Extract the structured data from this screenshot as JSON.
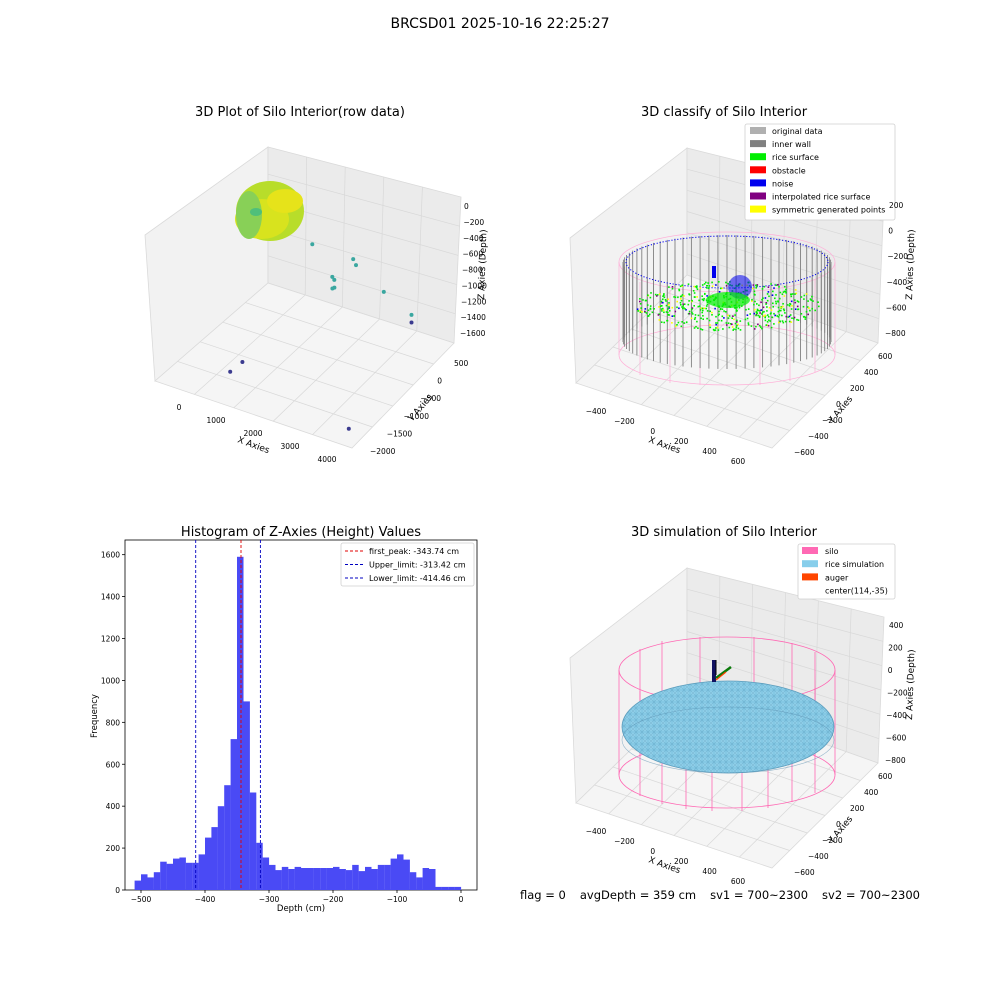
{
  "suptitle": "BRCSD01 2025-10-16 22:25:27",
  "status": {
    "flag": "flag = 0",
    "avg_depth": "avgDepth = 359 cm",
    "sv1": "sv1 = 700~2300",
    "sv2": "sv2 = 700~2300"
  },
  "colors": {
    "histogram_bar": "#4a4af5",
    "first_peak": "#e00000",
    "limit_lines": "#0000c0",
    "silo": "#ff69b4",
    "rice_simulation": "#87ceeb",
    "auger": "#ff4500",
    "inner_wall": "#808080",
    "rice_surface": "#00ee00",
    "obstacle": "#ff0000",
    "noise": "#0000ee",
    "interpolated": "#800080",
    "symmetric": "#ffff00",
    "original": "#b0b0b0",
    "raw_point_low": "#3b3b8f",
    "raw_point_mid": "#3aa7a0",
    "raw_point_high": "#d9e61d"
  },
  "panels": {
    "raw": {
      "title": "3D Plot of Silo Interior(row data)",
      "xlabel": "X Axies",
      "ylabel": "Y Axies",
      "zlabel": "Z Axies (Depth)",
      "x_ticks": [
        "0",
        "1000",
        "2000",
        "3000",
        "4000"
      ],
      "y_ticks": [
        "500",
        "0",
        "−500",
        "−1000",
        "−1500",
        "−2000"
      ],
      "z_ticks": [
        "0",
        "−200",
        "−400",
        "−600",
        "−800",
        "−1000",
        "−1200",
        "−1400",
        "−1600"
      ]
    },
    "classify": {
      "title": "3D classify of Silo Interior",
      "xlabel": "X Axies",
      "ylabel": "Y Axies",
      "zlabel": "Z Axies (Depth)",
      "x_ticks": [
        "−400",
        "−200",
        "0",
        "200",
        "400",
        "600"
      ],
      "y_ticks": [
        "600",
        "400",
        "200",
        "0",
        "−200",
        "−400",
        "−600"
      ],
      "z_ticks": [
        "200",
        "0",
        "−200",
        "−400",
        "−600",
        "−800"
      ],
      "legend": [
        {
          "label": "original data",
          "color": "#b0b0b0"
        },
        {
          "label": "inner wall",
          "color": "#808080"
        },
        {
          "label": "rice surface",
          "color": "#00ee00"
        },
        {
          "label": "obstacle",
          "color": "#ff0000"
        },
        {
          "label": "noise",
          "color": "#0000ee"
        },
        {
          "label": "interpolated rice surface",
          "color": "#800080"
        },
        {
          "label": "symmetric generated points",
          "color": "#ffff00"
        }
      ]
    },
    "simulation": {
      "title": "3D simulation of Silo Interior",
      "xlabel": "X Axies",
      "ylabel": "Y Axies",
      "zlabel": "Z Axies (Depth)",
      "x_ticks": [
        "−400",
        "−200",
        "0",
        "200",
        "400",
        "600"
      ],
      "y_ticks": [
        "600",
        "400",
        "200",
        "0",
        "−200",
        "−400",
        "−600"
      ],
      "z_ticks": [
        "400",
        "200",
        "0",
        "−200",
        "−400",
        "−600",
        "−800"
      ],
      "legend": [
        {
          "label": "silo",
          "color": "#ff69b4"
        },
        {
          "label": "rice simulation",
          "color": "#87ceeb"
        },
        {
          "label": "auger",
          "color": "#ff4500"
        },
        {
          "label": "center(114,-35)",
          "color": ""
        }
      ]
    }
  },
  "chart_data": [
    {
      "type": "histogram",
      "title": "Histogram of Z-Axies (Height) Values",
      "xlabel": "Depth (cm)",
      "ylabel": "Frequency",
      "xlim": [
        -525,
        25
      ],
      "ylim": [
        0,
        1670
      ],
      "x_ticks": [
        -500,
        -400,
        -300,
        -200,
        -100,
        0
      ],
      "y_ticks": [
        0,
        200,
        400,
        600,
        800,
        1000,
        1200,
        1400,
        1600
      ],
      "bin_width": 10.2,
      "bins": [
        {
          "x0": -510,
          "count": 45
        },
        {
          "x0": -500,
          "count": 75
        },
        {
          "x0": -490,
          "count": 60
        },
        {
          "x0": -480,
          "count": 85
        },
        {
          "x0": -470,
          "count": 135
        },
        {
          "x0": -460,
          "count": 125
        },
        {
          "x0": -450,
          "count": 150
        },
        {
          "x0": -440,
          "count": 155
        },
        {
          "x0": -430,
          "count": 130
        },
        {
          "x0": -420,
          "count": 130
        },
        {
          "x0": -410,
          "count": 170
        },
        {
          "x0": -400,
          "count": 250
        },
        {
          "x0": -390,
          "count": 300
        },
        {
          "x0": -380,
          "count": 400
        },
        {
          "x0": -370,
          "count": 500
        },
        {
          "x0": -360,
          "count": 720
        },
        {
          "x0": -350,
          "count": 1590
        },
        {
          "x0": -340,
          "count": 900
        },
        {
          "x0": -330,
          "count": 465
        },
        {
          "x0": -320,
          "count": 225
        },
        {
          "x0": -310,
          "count": 155
        },
        {
          "x0": -300,
          "count": 120
        },
        {
          "x0": -290,
          "count": 95
        },
        {
          "x0": -280,
          "count": 110
        },
        {
          "x0": -270,
          "count": 100
        },
        {
          "x0": -260,
          "count": 110
        },
        {
          "x0": -250,
          "count": 105
        },
        {
          "x0": -240,
          "count": 105
        },
        {
          "x0": -230,
          "count": 105
        },
        {
          "x0": -220,
          "count": 105
        },
        {
          "x0": -210,
          "count": 105
        },
        {
          "x0": -200,
          "count": 110
        },
        {
          "x0": -190,
          "count": 100
        },
        {
          "x0": -180,
          "count": 95
        },
        {
          "x0": -170,
          "count": 120
        },
        {
          "x0": -160,
          "count": 90
        },
        {
          "x0": -150,
          "count": 110
        },
        {
          "x0": -140,
          "count": 100
        },
        {
          "x0": -130,
          "count": 120
        },
        {
          "x0": -120,
          "count": 120
        },
        {
          "x0": -110,
          "count": 150
        },
        {
          "x0": -100,
          "count": 170
        },
        {
          "x0": -90,
          "count": 145
        },
        {
          "x0": -80,
          "count": 85
        },
        {
          "x0": -70,
          "count": 60
        },
        {
          "x0": -60,
          "count": 105
        },
        {
          "x0": -50,
          "count": 100
        },
        {
          "x0": -40,
          "count": 15
        },
        {
          "x0": -30,
          "count": 15
        },
        {
          "x0": -20,
          "count": 15
        },
        {
          "x0": -10,
          "count": 15
        }
      ],
      "vlines": [
        {
          "label": "first_peak: -343.74 cm",
          "x": -343.74,
          "color": "#e00000"
        },
        {
          "label": "Upper_limit: -313.42 cm",
          "x": -313.42,
          "color": "#0000c0"
        },
        {
          "label": "Lower_limit: -414.46 cm",
          "x": -414.46,
          "color": "#0000c0"
        }
      ],
      "legend_position": "top-right"
    },
    {
      "type": "scatter",
      "title": "3D Plot of Silo Interior(row data)",
      "note_3d": true,
      "points": [
        {
          "x": 1120,
          "y": -1600,
          "z": -1380
        },
        {
          "x": 920,
          "y": -1700,
          "z": -1500
        },
        {
          "x": 3950,
          "y": -1900,
          "z": -1590
        },
        {
          "x": 3500,
          "y": 300,
          "z": -1350
        },
        {
          "x": 3500,
          "y": 300,
          "z": -1250
        },
        {
          "x": 2900,
          "y": 200,
          "z": -1000
        },
        {
          "x": 2300,
          "y": 100,
          "z": -700
        },
        {
          "x": 2250,
          "y": 80,
          "z": -620
        },
        {
          "x": 1900,
          "y": -100,
          "z": -830
        },
        {
          "x": 1950,
          "y": -100,
          "z": -860
        },
        {
          "x": 2000,
          "y": -150,
          "z": -930
        },
        {
          "x": 1950,
          "y": -150,
          "z": -950
        },
        {
          "x": 1500,
          "y": -200,
          "z": -420
        }
      ],
      "xlim": [
        -500,
        4200
      ],
      "ylim": [
        -2100,
        700
      ],
      "zlim": [
        -1700,
        100
      ]
    }
  ]
}
